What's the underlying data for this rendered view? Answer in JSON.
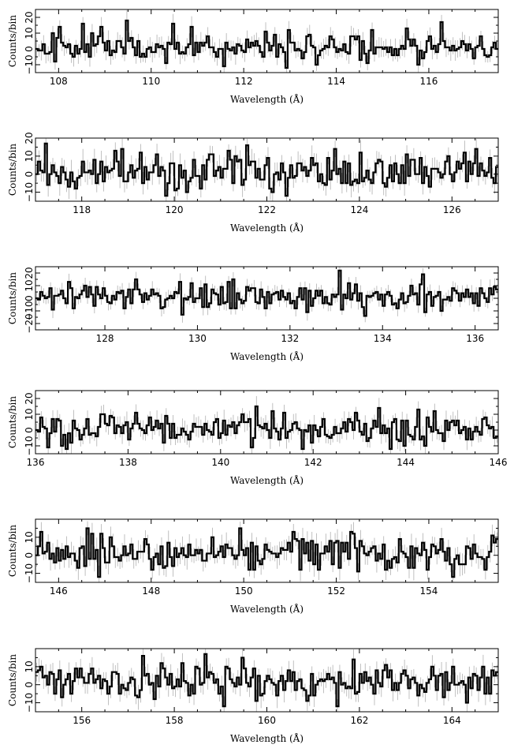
{
  "chart_data": [
    {
      "type": "line",
      "xlabel": "Wavelength (Å)",
      "ylabel": "Counts/bin",
      "xlim": [
        107.5,
        117.5
      ],
      "ylim": [
        -15,
        25
      ],
      "xticks": [
        108,
        110,
        112,
        114,
        116
      ],
      "yticks": [
        -10,
        0,
        10,
        20
      ],
      "ytick_labels": [
        "−10",
        "0",
        "10",
        "20"
      ],
      "bin_width": 0.05,
      "data_style": "histogram with error bars",
      "seed": 11
    },
    {
      "type": "line",
      "xlabel": "Wavelength (Å)",
      "ylabel": "Counts/bin",
      "xlim": [
        117,
        127
      ],
      "ylim": [
        -15,
        20
      ],
      "xticks": [
        118,
        120,
        122,
        124,
        126
      ],
      "yticks": [
        -10,
        0,
        10,
        20
      ],
      "ytick_labels": [
        "−10",
        "0",
        "10",
        "20"
      ],
      "bin_width": 0.05,
      "data_style": "histogram with error bars",
      "seed": 22
    },
    {
      "type": "line",
      "xlabel": "Wavelength (Å)",
      "ylabel": "Counts/bin",
      "xlim": [
        126.5,
        136.5
      ],
      "ylim": [
        -25,
        25
      ],
      "xticks": [
        128,
        130,
        132,
        134,
        136
      ],
      "yticks": [
        -20,
        -10,
        0,
        10,
        20
      ],
      "ytick_labels": [
        "−20",
        "−10",
        "0",
        "10",
        "20"
      ],
      "bin_width": 0.05,
      "data_style": "histogram with error bars",
      "seed": 33
    },
    {
      "type": "line",
      "xlabel": "Wavelength (Å)",
      "ylabel": "Counts/bin",
      "xlim": [
        136,
        146
      ],
      "ylim": [
        -15,
        25
      ],
      "xticks": [
        136,
        138,
        140,
        142,
        144,
        146
      ],
      "yticks": [
        -10,
        0,
        10,
        20
      ],
      "ytick_labels": [
        "−10",
        "0",
        "10",
        "20"
      ],
      "bin_width": 0.05,
      "data_style": "histogram with error bars",
      "seed": 44
    },
    {
      "type": "line",
      "xlabel": "Wavelength (Å)",
      "ylabel": "Counts/bin",
      "xlim": [
        145.5,
        155.5
      ],
      "ylim": [
        -15,
        20
      ],
      "xticks": [
        146,
        148,
        150,
        152,
        154
      ],
      "yticks": [
        -10,
        0,
        10
      ],
      "ytick_labels": [
        "−10",
        "0",
        "10"
      ],
      "bin_width": 0.05,
      "data_style": "histogram with error bars",
      "seed": 55
    },
    {
      "type": "line",
      "xlabel": "Wavelength (Å)",
      "ylabel": "Counts/bin",
      "xlim": [
        155,
        165
      ],
      "ylim": [
        -15,
        20
      ],
      "xticks": [
        156,
        158,
        160,
        162,
        164
      ],
      "yticks": [
        -10,
        0,
        10
      ],
      "ytick_labels": [
        "−10",
        "0",
        "10"
      ],
      "bin_width": 0.05,
      "data_style": "histogram with error bars",
      "seed": 66
    }
  ]
}
